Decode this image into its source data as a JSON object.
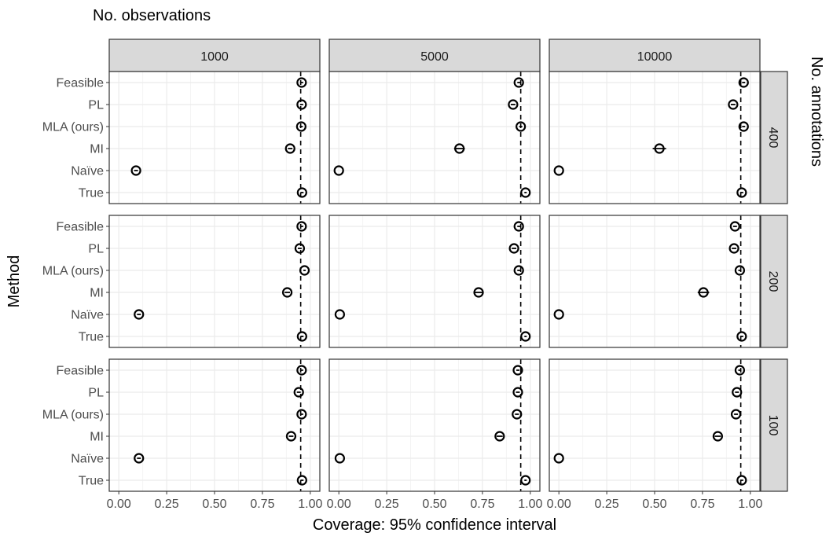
{
  "chart_data": {
    "type": "scatter",
    "top_label": "No. observations",
    "xlabel": "Coverage: 95% confidence interval",
    "ylabel": "Method",
    "right_label": "No. annotations",
    "col_facets": [
      "1000",
      "5000",
      "10000"
    ],
    "row_facets": [
      "400",
      "200",
      "100"
    ],
    "methods": [
      "Feasible",
      "PL",
      "MLA (ours)",
      "MI",
      "Naïve",
      "True"
    ],
    "xlim": [
      -0.05,
      1.05
    ],
    "x_ticks": [
      0,
      0.25,
      0.5,
      0.75,
      1
    ],
    "x_tick_labels": [
      "0.00",
      "0.25",
      "0.50",
      "0.75",
      "1.00"
    ],
    "reference_line": 0.95,
    "grid": true,
    "panels": [
      {
        "row": "400",
        "col": "1000",
        "values": [
          0.955,
          0.955,
          0.953,
          0.895,
          0.09,
          0.957
        ],
        "err": [
          0.008,
          0.008,
          0.008,
          0.012,
          0.01,
          0.008
        ]
      },
      {
        "row": "400",
        "col": "5000",
        "values": [
          0.94,
          0.91,
          0.95,
          0.63,
          0.0,
          0.975
        ],
        "err": [
          0.008,
          0.012,
          0.008,
          0.028,
          0.0,
          0.006
        ]
      },
      {
        "row": "400",
        "col": "10000",
        "values": [
          0.965,
          0.91,
          0.965,
          0.525,
          0.0,
          0.955
        ],
        "err": [
          0.008,
          0.012,
          0.008,
          0.035,
          0.0,
          0.008
        ]
      },
      {
        "row": "200",
        "col": "1000",
        "values": [
          0.955,
          0.945,
          0.97,
          0.88,
          0.105,
          0.957
        ],
        "err": [
          0.008,
          0.01,
          0.006,
          0.014,
          0.01,
          0.008
        ]
      },
      {
        "row": "200",
        "col": "5000",
        "values": [
          0.94,
          0.915,
          0.94,
          0.73,
          0.005,
          0.975
        ],
        "err": [
          0.008,
          0.012,
          0.008,
          0.025,
          0.0,
          0.006
        ]
      },
      {
        "row": "200",
        "col": "10000",
        "values": [
          0.92,
          0.915,
          0.945,
          0.755,
          0.0,
          0.955
        ],
        "err": [
          0.01,
          0.012,
          0.008,
          0.03,
          0.0,
          0.008
        ]
      },
      {
        "row": "100",
        "col": "1000",
        "values": [
          0.955,
          0.94,
          0.955,
          0.9,
          0.105,
          0.957
        ],
        "err": [
          0.008,
          0.01,
          0.008,
          0.012,
          0.01,
          0.008
        ]
      },
      {
        "row": "100",
        "col": "5000",
        "values": [
          0.935,
          0.935,
          0.93,
          0.84,
          0.005,
          0.975
        ],
        "err": [
          0.008,
          0.01,
          0.01,
          0.016,
          0.0,
          0.006
        ]
      },
      {
        "row": "100",
        "col": "10000",
        "values": [
          0.945,
          0.93,
          0.925,
          0.83,
          0.0,
          0.955
        ],
        "err": [
          0.008,
          0.01,
          0.01,
          0.016,
          0.0,
          0.008
        ]
      }
    ]
  }
}
